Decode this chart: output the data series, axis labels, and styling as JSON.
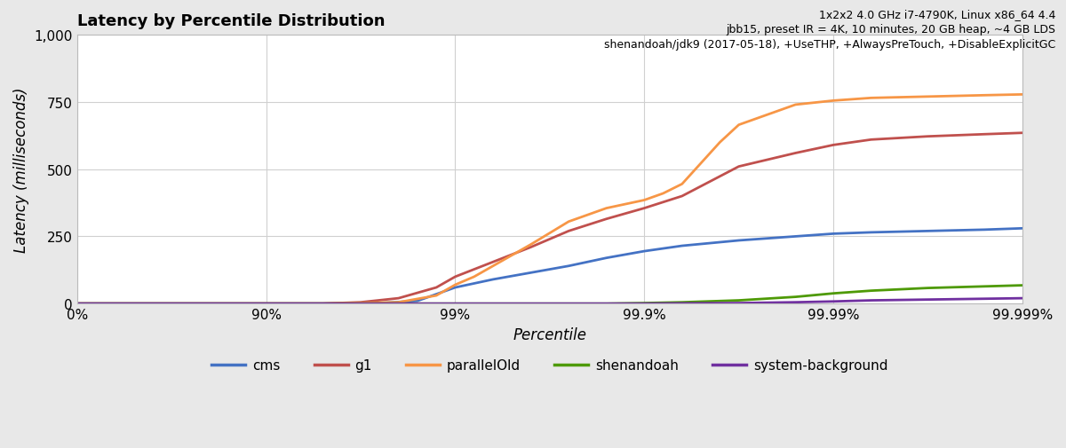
{
  "title": "Latency by Percentile Distribution",
  "subtitle_line1": "1x2x2 4.0 GHz i7-4790K, Linux x86_64 4.4",
  "subtitle_line2": "jbb15, preset IR = 4K, 10 minutes, 20 GB heap, ~4 GB LDS",
  "subtitle_line3": "shenandoah/jdk9 (2017-05-18), +UseTHP, +AlwaysPreTouch, +DisableExplicitGC",
  "xlabel": "Percentile",
  "ylabel": "Latency (milliseconds)",
  "ylim": [
    0,
    1000
  ],
  "yticks": [
    0,
    250,
    500,
    750,
    1000
  ],
  "ytick_labels": [
    "0",
    "250",
    "500",
    "750",
    "1,000"
  ],
  "xtick_positions": [
    0,
    1,
    2,
    3,
    4,
    5
  ],
  "xtick_labels": [
    "0%",
    "90%",
    "99%",
    "99.9%",
    "99.99%",
    "99.999%"
  ],
  "figure_bg": "#e8e8e8",
  "plot_bg": "#ffffff",
  "grid_color": "#d0d0d0",
  "series": {
    "cms": {
      "color": "#4472c4",
      "x": [
        0,
        1.0,
        1.3,
        1.6,
        1.8,
        2.0,
        2.2,
        2.4,
        2.6,
        2.8,
        3.0,
        3.2,
        3.5,
        3.8,
        4.0,
        4.2,
        4.5,
        4.8,
        5.0
      ],
      "y": [
        0,
        0,
        0,
        2,
        10,
        60,
        90,
        115,
        140,
        170,
        195,
        215,
        235,
        250,
        260,
        265,
        270,
        275,
        280
      ]
    },
    "g1": {
      "color": "#c0504d",
      "x": [
        0,
        1.0,
        1.3,
        1.5,
        1.7,
        1.9,
        2.0,
        2.2,
        2.4,
        2.6,
        2.8,
        3.0,
        3.2,
        3.5,
        3.8,
        4.0,
        4.2,
        4.5,
        4.8,
        5.0
      ],
      "y": [
        0,
        0,
        0,
        5,
        20,
        60,
        100,
        155,
        210,
        270,
        315,
        355,
        400,
        510,
        560,
        590,
        610,
        622,
        630,
        635
      ]
    },
    "parallelOld": {
      "color": "#f79646",
      "x": [
        0,
        1.0,
        1.3,
        1.5,
        1.7,
        1.9,
        2.0,
        2.1,
        2.2,
        2.4,
        2.6,
        2.8,
        3.0,
        3.1,
        3.2,
        3.4,
        3.5,
        3.8,
        4.0,
        4.2,
        4.5,
        4.8,
        5.0
      ],
      "y": [
        0,
        0,
        0,
        2,
        5,
        30,
        70,
        100,
        140,
        220,
        305,
        355,
        385,
        410,
        445,
        600,
        665,
        740,
        755,
        765,
        770,
        775,
        778
      ]
    },
    "shenandoah": {
      "color": "#4e9a06",
      "x": [
        0,
        1.0,
        2.0,
        2.5,
        2.8,
        3.0,
        3.2,
        3.5,
        3.8,
        4.0,
        4.2,
        4.5,
        4.8,
        5.0
      ],
      "y": [
        0,
        0,
        0,
        0,
        0,
        2,
        5,
        12,
        25,
        38,
        48,
        58,
        64,
        68
      ]
    },
    "system-background": {
      "color": "#7030a0",
      "x": [
        0,
        1.0,
        2.0,
        2.8,
        3.0,
        3.2,
        3.5,
        3.8,
        4.0,
        4.2,
        4.5,
        4.8,
        5.0
      ],
      "y": [
        0,
        0,
        0,
        0,
        0,
        1,
        2,
        5,
        8,
        12,
        15,
        18,
        20
      ]
    }
  },
  "legend_order": [
    "cms",
    "g1",
    "parallelOld",
    "shenandoah",
    "system-background"
  ]
}
